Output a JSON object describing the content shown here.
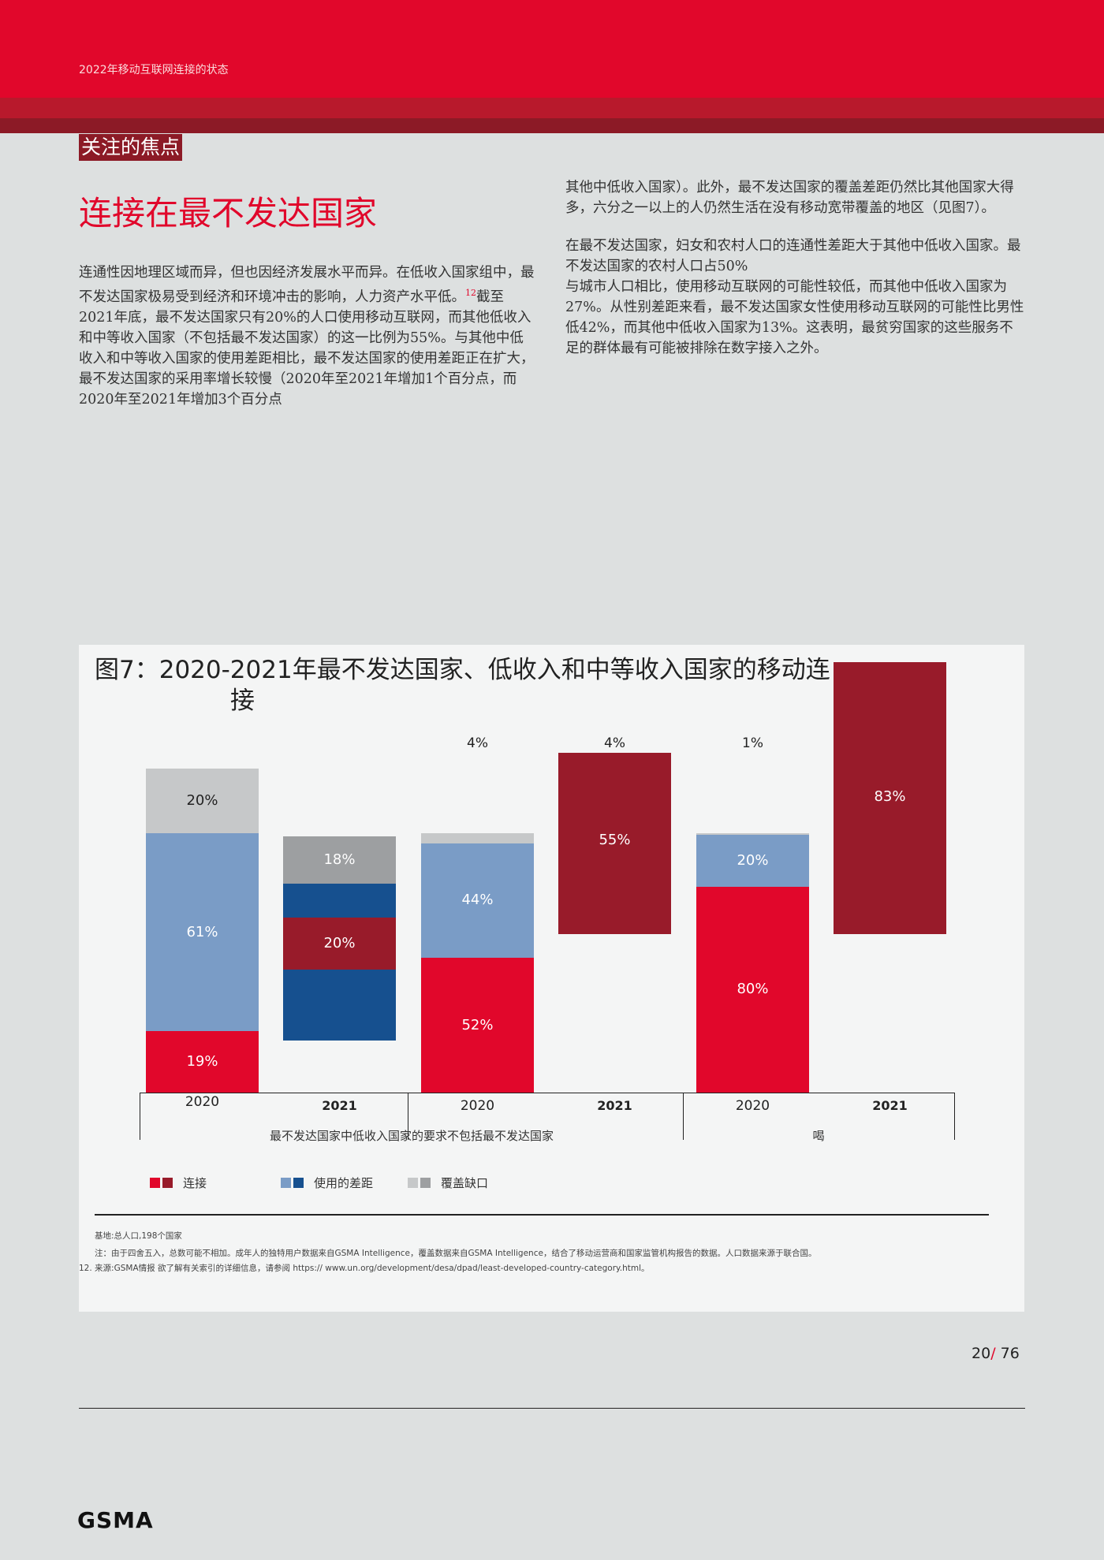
{
  "header": {
    "report_title": "2022年移动互联网连接的状态"
  },
  "section": {
    "label": "关注的焦点",
    "heading": "连接在最不发达国家"
  },
  "body": {
    "left_para_a": "连通性因地理区域而异，但也因经济发展水平而异。在低收入国家组中，最不发达国家极易受到经济和环境冲击的影响，人力资产水平低。",
    "left_footnote_ref": "12",
    "left_para_b": "截至2021年底，最不发达国家只有20%的人口使用移动互联网，而其他低收入和中等收入国家（不包括最不发达国家）的这一比例为55%。与其他中低收入和中等收入国家的使用差距相比，最不发达国家的使用差距正在扩大，最不发达国家的采用率增长较慢（2020年至2021年增加1个百分点，而2020年至2021年增加3个百分点",
    "right_para_1": "其他中低收入国家）。此外，最不发达国家的覆盖差距仍然比其他国家大得多，六分之一以上的人仍然生活在没有移动宽带覆盖的地区（见图7）。",
    "right_para_2_line1": "在最不发达国家，妇女和农村人口的连通性差距大于其他中低收入国家。最不发达国家的农村人口占50%",
    "right_para_2_line2": "与城市人口相比，使用移动互联网的可能性较低，而其他中低收入国家为27%。从性别差距来看，最不发达国家女性使用移动互联网的可能性比男性低42%，而其他中低收入国家为13%。这表明，最贫穷国家的这些服务不足的群体最有可能被排除在数字接入之外。"
  },
  "figure": {
    "title_line1": "图7：2020-2021年最不发达国家、低收入和中等收入国家的移动连",
    "title_line2": "接",
    "legend": {
      "connected": "连接",
      "usage_gap": "使用的差距",
      "coverage_gap": "覆盖缺口"
    },
    "notes": {
      "basis": "基地:总人口,198个国家",
      "note": "注：由于四舍五入，总数可能不相加。成年人的独特用户数据来自GSMA Intelligence，覆盖数据来自GSMA Intelligence，结合了移动运营商和国家监管机构报告的数据。人口数据来源于联合国。",
      "footnote_num": "12.",
      "footnote_src": "来源:GSMA情报",
      "footnote_text": "欲了解有关索引的详细信息，请参阅 https:// www.un.org/development/desa/dpad/least-developed-country-category.html。"
    }
  },
  "chart_data": {
    "type": "bar",
    "stacked": true,
    "groups": [
      "最不发达国家中低收入国家的要求不包括最不发达国家",
      "",
      "喝"
    ],
    "years": [
      "2020",
      "2021",
      "2020",
      "2021",
      "2020",
      "2021"
    ],
    "series": [
      {
        "name": "连接",
        "values": [
          19,
          20,
          52,
          55,
          80,
          83
        ]
      },
      {
        "name": "使用的差距",
        "values": [
          61,
          null,
          44,
          null,
          20,
          null
        ]
      },
      {
        "name": "覆盖缺口",
        "values": [
          20,
          18,
          4,
          4,
          1,
          null
        ]
      }
    ],
    "labels": {
      "b0": {
        "connected": "19%",
        "usage": "61%",
        "coverage": "20%"
      },
      "b1": {
        "connected": "20%",
        "coverage": "18%"
      },
      "b2": {
        "connected": "52%",
        "usage": "44%",
        "coverage": "4%"
      },
      "b3": {
        "connected": "55%",
        "coverage": "4%"
      },
      "b4": {
        "connected": "80%",
        "usage": "20%",
        "coverage": "1%"
      },
      "b5": {
        "connected": "83%"
      }
    },
    "colors": {
      "connected_2020": "#e1072b",
      "connected_2021": "#981b2a",
      "usage_2020": "#7a9cc6",
      "usage_2021": "#16508f",
      "coverage_2020": "#c6c8c9",
      "coverage_2021": "#9d9fa1"
    }
  },
  "footer": {
    "page_current": "20",
    "page_sep": "/",
    "page_total": " 76",
    "logo": "GSMA"
  }
}
